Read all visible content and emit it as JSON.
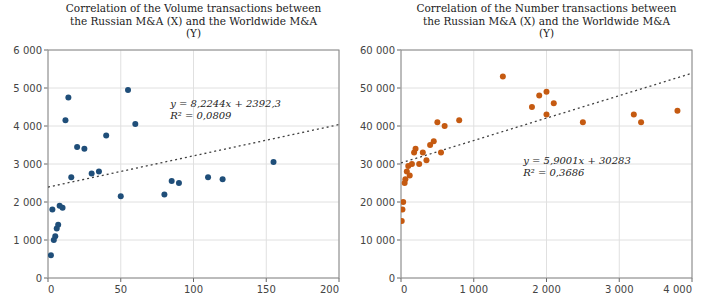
{
  "chart_data": [
    {
      "type": "scatter",
      "title": "Correlation of the Volume transactions between\nthe Russian M&A (X) and the Worldwide M&A\n(Y)",
      "x": [
        2,
        3,
        4,
        5,
        6,
        7,
        8,
        10,
        12,
        14,
        16,
        20,
        25,
        30,
        35,
        40,
        50,
        55,
        60,
        80,
        85,
        90,
        110,
        120,
        155
      ],
      "values": [
        600,
        1800,
        1000,
        1100,
        1300,
        1400,
        1900,
        1850,
        4150,
        4750,
        2650,
        3450,
        3400,
        2750,
        2800,
        3750,
        2150,
        4950,
        4050,
        2200,
        2550,
        2500,
        2650,
        2600,
        3050
      ],
      "color": "#1f4e79",
      "trendline": {
        "slope": 8.2244,
        "intercept": 2392.3
      },
      "annotations": [
        "y = 8,2244x + 2392,3",
        "R² = 0,0809"
      ],
      "xlim": [
        0,
        200
      ],
      "ylim": [
        0,
        6000
      ],
      "xticks": [
        0,
        50,
        100,
        150,
        200
      ],
      "yticks": [
        0,
        {
          "value": 1000,
          "label": "1 000"
        },
        {
          "value": 2000,
          "label": "2 000"
        },
        {
          "value": 3000,
          "label": "3 000"
        },
        {
          "value": 4000,
          "label": "4 000"
        },
        {
          "value": 5000,
          "label": "5 000"
        },
        {
          "value": 6000,
          "label": "6 000"
        }
      ],
      "grid": true
    },
    {
      "type": "scatter",
      "title": "Correlation of the Number transactions between\nthe Russian M&A (X) and the Worldwide M&A\n(Y)",
      "x": [
        10,
        20,
        30,
        50,
        60,
        80,
        100,
        120,
        150,
        180,
        200,
        250,
        300,
        350,
        400,
        450,
        500,
        550,
        600,
        800,
        1400,
        1800,
        1900,
        2000,
        2000,
        2100,
        2500,
        3200,
        3300,
        3800
      ],
      "values": [
        15000,
        18000,
        20000,
        25000,
        26000,
        28000,
        29500,
        27000,
        30000,
        33000,
        34000,
        30000,
        33000,
        31000,
        35000,
        36000,
        41000,
        33000,
        40000,
        41500,
        53000,
        45000,
        48000,
        49000,
        43000,
        46000,
        41000,
        43000,
        41000,
        44000
      ],
      "color": "#c55a11",
      "trendline": {
        "slope": 5.9001,
        "intercept": 30283
      },
      "annotations": [
        "y = 5,9001x + 30283",
        "R² = 0,3686"
      ],
      "xlim": [
        0,
        4000
      ],
      "ylim": [
        0,
        60000
      ],
      "xticks": [
        0,
        {
          "value": 1000,
          "label": "1 000"
        },
        {
          "value": 2000,
          "label": "2 000"
        },
        {
          "value": 3000,
          "label": "3 000"
        },
        {
          "value": 4000,
          "label": "4 000"
        }
      ],
      "yticks": [
        0,
        {
          "value": 10000,
          "label": "10 000"
        },
        {
          "value": 20000,
          "label": "20 000"
        },
        {
          "value": 30000,
          "label": "30 000"
        },
        {
          "value": 40000,
          "label": "40 000"
        },
        {
          "value": 50000,
          "label": "50 000"
        },
        {
          "value": 60000,
          "label": "60 000"
        }
      ],
      "grid": true
    }
  ]
}
